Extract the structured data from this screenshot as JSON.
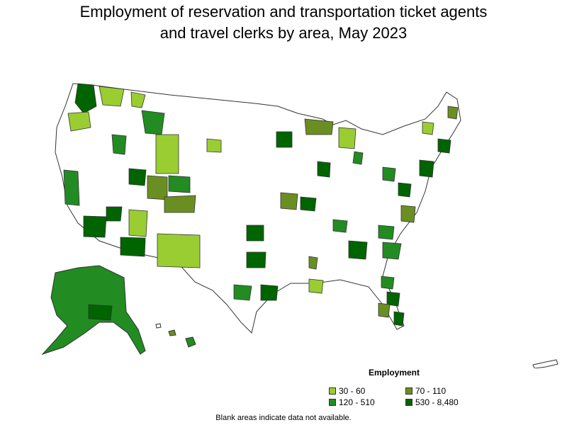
{
  "title_line1": "Employment of reservation and transportation ticket agents",
  "title_line2": "and travel clerks by area, May 2023",
  "legend": {
    "title": "Employment",
    "items": [
      {
        "label": "30 - 60",
        "color": "#9acd32"
      },
      {
        "label": "70 - 110",
        "color": "#6b8e23"
      },
      {
        "label": "120 - 510",
        "color": "#228b22"
      },
      {
        "label": "530 - 8,480",
        "color": "#006400"
      }
    ]
  },
  "footnote": "Blank areas indicate data not available."
}
